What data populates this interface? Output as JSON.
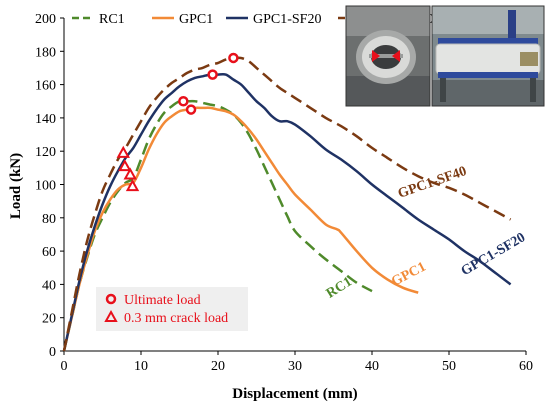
{
  "chart_data": {
    "type": "line",
    "xlabel": "Displacement (mm)",
    "ylabel": "Load (kN)",
    "xlim": [
      0,
      60
    ],
    "ylim": [
      0,
      200
    ],
    "xticks": [
      0,
      10,
      20,
      30,
      40,
      50,
      60
    ],
    "yticks": [
      0,
      20,
      40,
      60,
      80,
      100,
      120,
      140,
      160,
      180,
      200
    ],
    "grid": false,
    "legend_position": "top",
    "series": [
      {
        "name": "RC1",
        "color": "#4f8a2b",
        "style": "dashed",
        "x": [
          0,
          1,
          2,
          3,
          4,
          5,
          6,
          7,
          8,
          9,
          10,
          11,
          12,
          13,
          14,
          15,
          16,
          17,
          18,
          19,
          20,
          21,
          22,
          23,
          24,
          25,
          26,
          27,
          28,
          29,
          30,
          32,
          34,
          36,
          38,
          40
        ],
        "y": [
          0,
          20,
          40,
          56,
          70,
          80,
          89,
          96,
          101,
          104,
          115,
          127,
          136,
          143,
          147,
          150,
          150,
          150,
          149,
          148,
          147,
          145,
          142,
          137,
          130,
          121,
          111,
          101,
          91,
          81,
          72,
          63,
          55,
          48,
          41,
          36
        ]
      },
      {
        "name": "GPC1",
        "color": "#f28a37",
        "style": "solid",
        "x": [
          0,
          1,
          2,
          3,
          4,
          5,
          6,
          7,
          8,
          9,
          10,
          11,
          12,
          13,
          14,
          15,
          16,
          17,
          18,
          19,
          20,
          21,
          22,
          23,
          24,
          25,
          26,
          27,
          28,
          29,
          30,
          32,
          34,
          35.5,
          36,
          38,
          40,
          42,
          44,
          46
        ],
        "y": [
          0,
          20,
          40,
          57,
          72,
          83,
          91,
          97,
          100,
          101,
          110,
          121,
          130,
          137,
          141,
          144,
          145,
          146,
          146,
          146,
          145,
          144,
          142,
          138,
          133,
          127,
          120,
          113,
          106,
          100,
          94,
          85,
          76,
          73,
          71,
          60,
          50,
          43,
          38,
          35
        ]
      },
      {
        "name": "GPC1-SF20",
        "color": "#1f3264",
        "style": "solid",
        "x": [
          0,
          1,
          2,
          3,
          4,
          5,
          6,
          7,
          8,
          9,
          10,
          11,
          12,
          13,
          14,
          15,
          16,
          17,
          18,
          19,
          20,
          21,
          22,
          23,
          24,
          25,
          26,
          27,
          28,
          29,
          30,
          32,
          34,
          36,
          38,
          40,
          42,
          44,
          46,
          48,
          50,
          52,
          54,
          56,
          58
        ],
        "y": [
          0,
          21,
          42,
          60,
          75,
          88,
          99,
          108,
          116,
          122,
          130,
          138,
          145,
          151,
          155,
          159,
          162,
          164,
          165,
          166,
          166,
          166,
          163,
          160,
          155,
          150,
          146,
          141,
          138,
          138,
          136,
          129,
          121,
          115,
          108,
          100,
          93,
          86,
          79,
          73,
          67,
          60,
          54,
          47,
          40
        ]
      },
      {
        "name": "GPC1-SF40",
        "color": "#7b3a12",
        "style": "dashed",
        "x": [
          0,
          1,
          2,
          3,
          4,
          5,
          6,
          7,
          8,
          9,
          10,
          11,
          12,
          13,
          14,
          15,
          16,
          17,
          18,
          19,
          20,
          21,
          22,
          23,
          24,
          25,
          26,
          27,
          28,
          29,
          30,
          32,
          34,
          36,
          38,
          40,
          42,
          44,
          46,
          48,
          50,
          52,
          54,
          56,
          58
        ],
        "y": [
          0,
          23,
          46,
          66,
          82,
          96,
          106,
          115,
          122,
          130,
          138,
          146,
          152,
          157,
          161,
          164,
          167,
          169,
          170,
          172,
          173,
          175,
          176,
          176,
          174,
          170,
          166,
          162,
          158,
          155,
          152,
          146,
          140,
          135,
          129,
          122,
          116,
          110,
          105,
          101,
          98,
          94,
          89,
          84,
          79
        ]
      }
    ],
    "curve_labels": [
      {
        "text": "GPC1-SF40",
        "series": "GPC1-SF40",
        "x": 48,
        "y": 99,
        "angle": -35
      },
      {
        "text": "GPC1-SF20",
        "series": "GPC1-SF20",
        "x": 56,
        "y": 56,
        "angle": -55
      },
      {
        "text": "GPC1",
        "series": "GPC1",
        "x": 45,
        "y": 44,
        "angle": -50
      },
      {
        "text": "RC1",
        "series": "RC1",
        "x": 36,
        "y": 36,
        "angle": -58
      }
    ],
    "markers": {
      "ultimate_load": {
        "label": "Ultimate load",
        "points": [
          {
            "x": 15.5,
            "y": 150
          },
          {
            "x": 16.5,
            "y": 145
          },
          {
            "x": 19.3,
            "y": 166
          },
          {
            "x": 22,
            "y": 176
          }
        ]
      },
      "crack_load": {
        "label": "0.3 mm crack load",
        "points": [
          {
            "x": 7.7,
            "y": 119
          },
          {
            "x": 7.9,
            "y": 111
          },
          {
            "x": 8.6,
            "y": 106
          },
          {
            "x": 8.9,
            "y": 99
          }
        ]
      }
    }
  }
}
